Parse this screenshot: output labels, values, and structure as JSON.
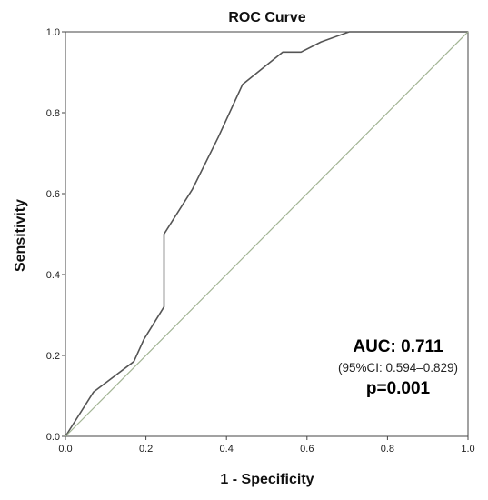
{
  "chart_data": {
    "type": "line",
    "title": "ROC Curve",
    "xlabel": "1 - Specificity",
    "ylabel": "Sensitivity",
    "xlim": [
      0.0,
      1.0
    ],
    "ylim": [
      0.0,
      1.0
    ],
    "x_ticks": [
      "0.0",
      "0.2",
      "0.4",
      "0.6",
      "0.8",
      "1.0"
    ],
    "y_ticks": [
      "0.0",
      "0.2",
      "0.4",
      "0.6",
      "0.8",
      "1.0"
    ],
    "grid": false,
    "series": [
      {
        "color": "#555555",
        "x": [
          0.0,
          0.07,
          0.17,
          0.195,
          0.245,
          0.245,
          0.315,
          0.38,
          0.44,
          0.54,
          0.585,
          0.635,
          0.705,
          1.0
        ],
        "y": [
          0.0,
          0.11,
          0.185,
          0.24,
          0.32,
          0.5,
          0.61,
          0.74,
          0.87,
          0.95,
          0.95,
          0.975,
          1.0,
          1.0
        ]
      },
      {
        "color": "#a3b595",
        "x": [
          0.0,
          1.0
        ],
        "y": [
          0.0,
          1.0
        ]
      }
    ],
    "annotations": {
      "auc": "AUC: 0.711",
      "ci": "(95%CI: 0.594–0.829)",
      "p": "p=0.001"
    }
  }
}
